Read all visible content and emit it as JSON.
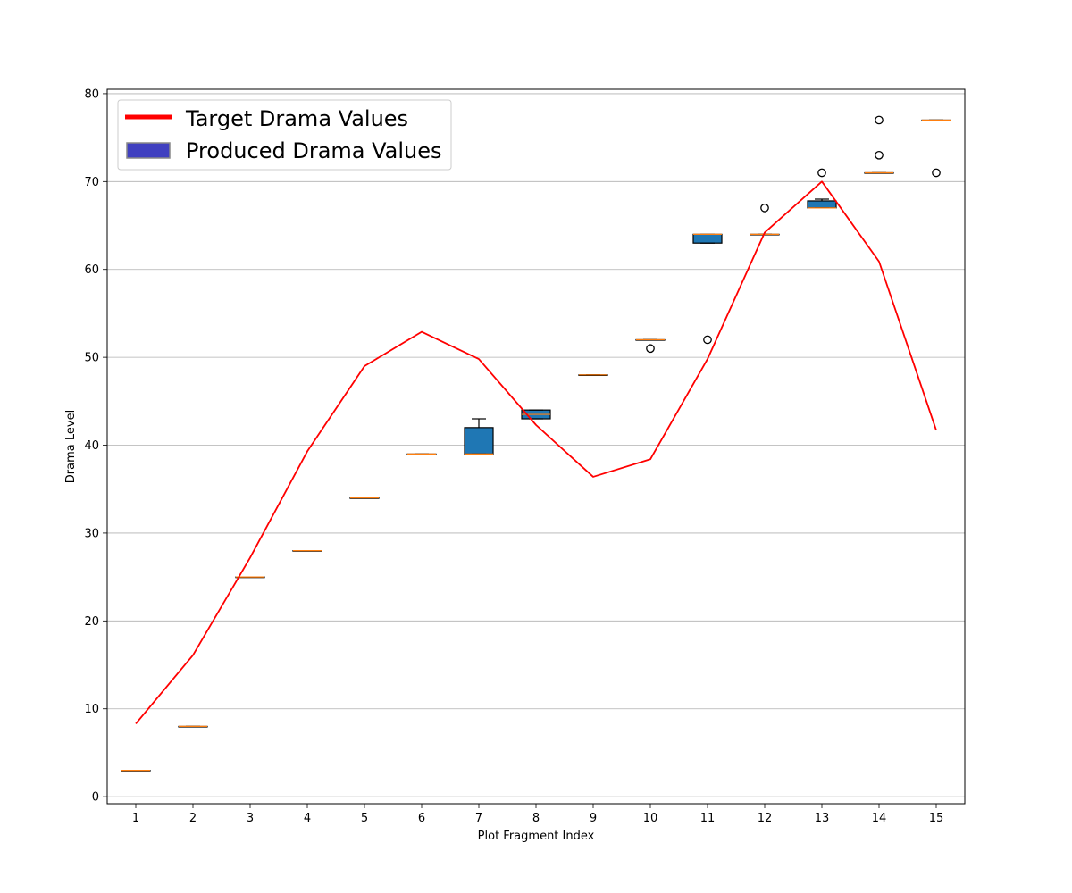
{
  "chart_data": {
    "type": "box",
    "xlabel": "Plot Fragment Index",
    "ylabel": "Drama Level",
    "xlim": [
      0.5,
      15.5
    ],
    "ylim": [
      -0.8,
      80.5
    ],
    "yticks": [
      0,
      10,
      20,
      30,
      40,
      50,
      60,
      70,
      80
    ],
    "categories": [
      "1",
      "2",
      "3",
      "4",
      "5",
      "6",
      "7",
      "8",
      "9",
      "10",
      "11",
      "12",
      "13",
      "14",
      "15"
    ],
    "grid": "horizontal",
    "legend_position": "top-left",
    "legend": [
      {
        "label": "Target Drama Values",
        "kind": "line",
        "color": "#ff0000"
      },
      {
        "label": "Produced Drama Values",
        "kind": "patch",
        "color": "#4040c0"
      }
    ],
    "target_line": {
      "name": "Target Drama Values",
      "color": "#ff0000",
      "x": [
        1,
        2,
        3,
        4,
        5,
        6,
        7,
        8,
        9,
        10,
        11,
        12,
        13,
        14,
        15
      ],
      "values": [
        8.3,
        16.1,
        27.2,
        39.3,
        49.0,
        52.9,
        49.8,
        42.3,
        36.4,
        38.4,
        49.8,
        64.2,
        70.0,
        60.9,
        41.7
      ]
    },
    "produced_boxes": {
      "name": "Produced Drama Values",
      "box_color": "#1f77b4",
      "median_color": "#ff7f0e",
      "boxes": [
        {
          "x": 1,
          "q1": 3,
          "median": 3,
          "q3": 3,
          "whislo": 3,
          "whishi": 3,
          "fliers": []
        },
        {
          "x": 2,
          "q1": 8,
          "median": 8,
          "q3": 8,
          "whislo": 8,
          "whishi": 8,
          "fliers": []
        },
        {
          "x": 3,
          "q1": 25,
          "median": 25,
          "q3": 25,
          "whislo": 25,
          "whishi": 25,
          "fliers": []
        },
        {
          "x": 4,
          "q1": 28,
          "median": 28,
          "q3": 28,
          "whislo": 28,
          "whishi": 28,
          "fliers": []
        },
        {
          "x": 5,
          "q1": 34,
          "median": 34,
          "q3": 34,
          "whislo": 34,
          "whishi": 34,
          "fliers": []
        },
        {
          "x": 6,
          "q1": 39,
          "median": 39,
          "q3": 39,
          "whislo": 39,
          "whishi": 39,
          "fliers": []
        },
        {
          "x": 7,
          "q1": 39,
          "median": 39,
          "q3": 42,
          "whislo": 39,
          "whishi": 43,
          "fliers": []
        },
        {
          "x": 8,
          "q1": 43,
          "median": 43.5,
          "q3": 44,
          "whislo": 43,
          "whishi": 44,
          "fliers": []
        },
        {
          "x": 9,
          "q1": 48,
          "median": 48,
          "q3": 48,
          "whislo": 48,
          "whishi": 48,
          "fliers": []
        },
        {
          "x": 10,
          "q1": 52,
          "median": 52,
          "q3": 52,
          "whislo": 52,
          "whishi": 52,
          "fliers": [
            51
          ]
        },
        {
          "x": 11,
          "q1": 63,
          "median": 64,
          "q3": 64,
          "whislo": 63,
          "whishi": 64,
          "fliers": [
            52
          ]
        },
        {
          "x": 12,
          "q1": 64,
          "median": 64,
          "q3": 64,
          "whislo": 64,
          "whishi": 64,
          "fliers": [
            67
          ]
        },
        {
          "x": 13,
          "q1": 67,
          "median": 67,
          "q3": 67.8,
          "whislo": 67,
          "whishi": 68,
          "fliers": [
            71
          ]
        },
        {
          "x": 14,
          "q1": 71,
          "median": 71,
          "q3": 71,
          "whislo": 71,
          "whishi": 71,
          "fliers": [
            73,
            77
          ]
        },
        {
          "x": 15,
          "q1": 77,
          "median": 77,
          "q3": 77,
          "whislo": 77,
          "whishi": 77,
          "fliers": [
            71
          ]
        }
      ]
    }
  }
}
